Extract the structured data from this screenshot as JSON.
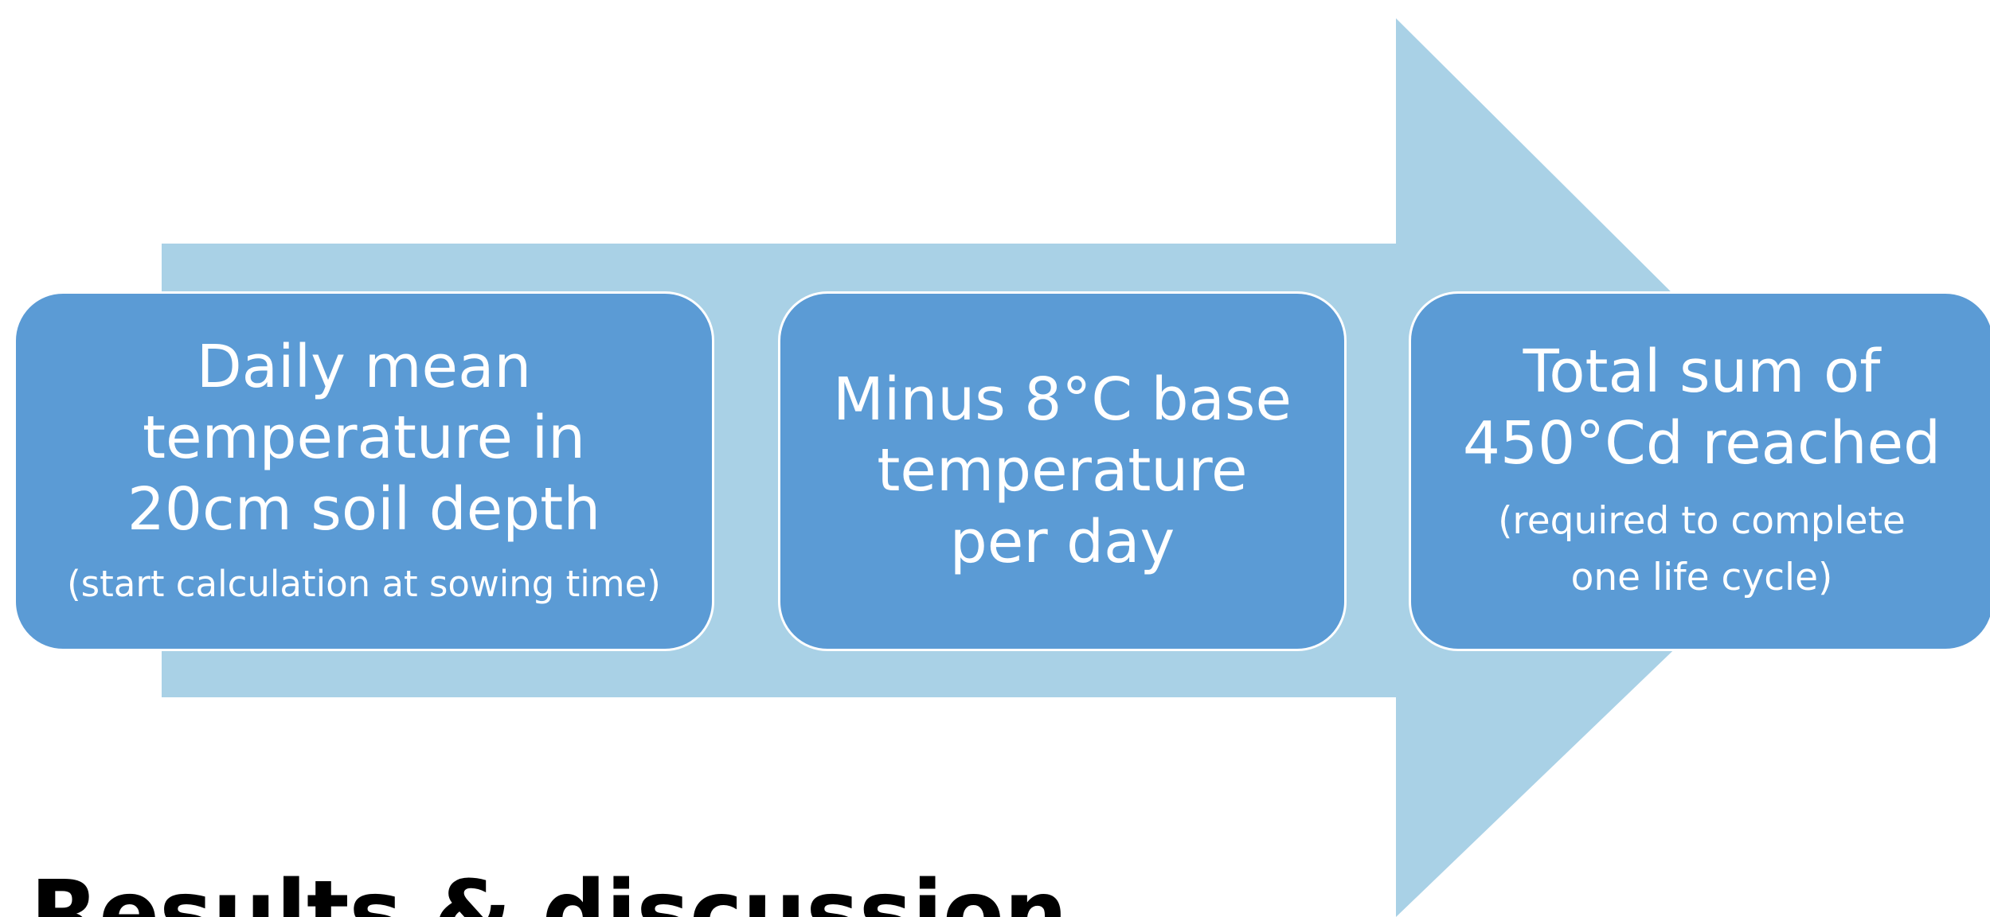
{
  "colors": {
    "background": "#ffffff",
    "arrow_fill": "#a9d1e6",
    "box_fill": "#5b9bd5",
    "box_border": "#ffffff",
    "box_text": "#ffffff",
    "heading_text": "#000000"
  },
  "process_arrow": {
    "direction": "right",
    "steps": [
      {
        "main_text": "Daily mean\ntemperature in\n20cm soil depth",
        "sub_text": "(start calculation at sowing time)"
      },
      {
        "main_text": "Minus 8°C base\ntemperature\nper day",
        "sub_text": ""
      },
      {
        "main_text": "Total sum of\n450°Cd reached",
        "sub_text": "(required to complete\none life cycle)"
      }
    ]
  },
  "section_heading": "Results & discussion"
}
